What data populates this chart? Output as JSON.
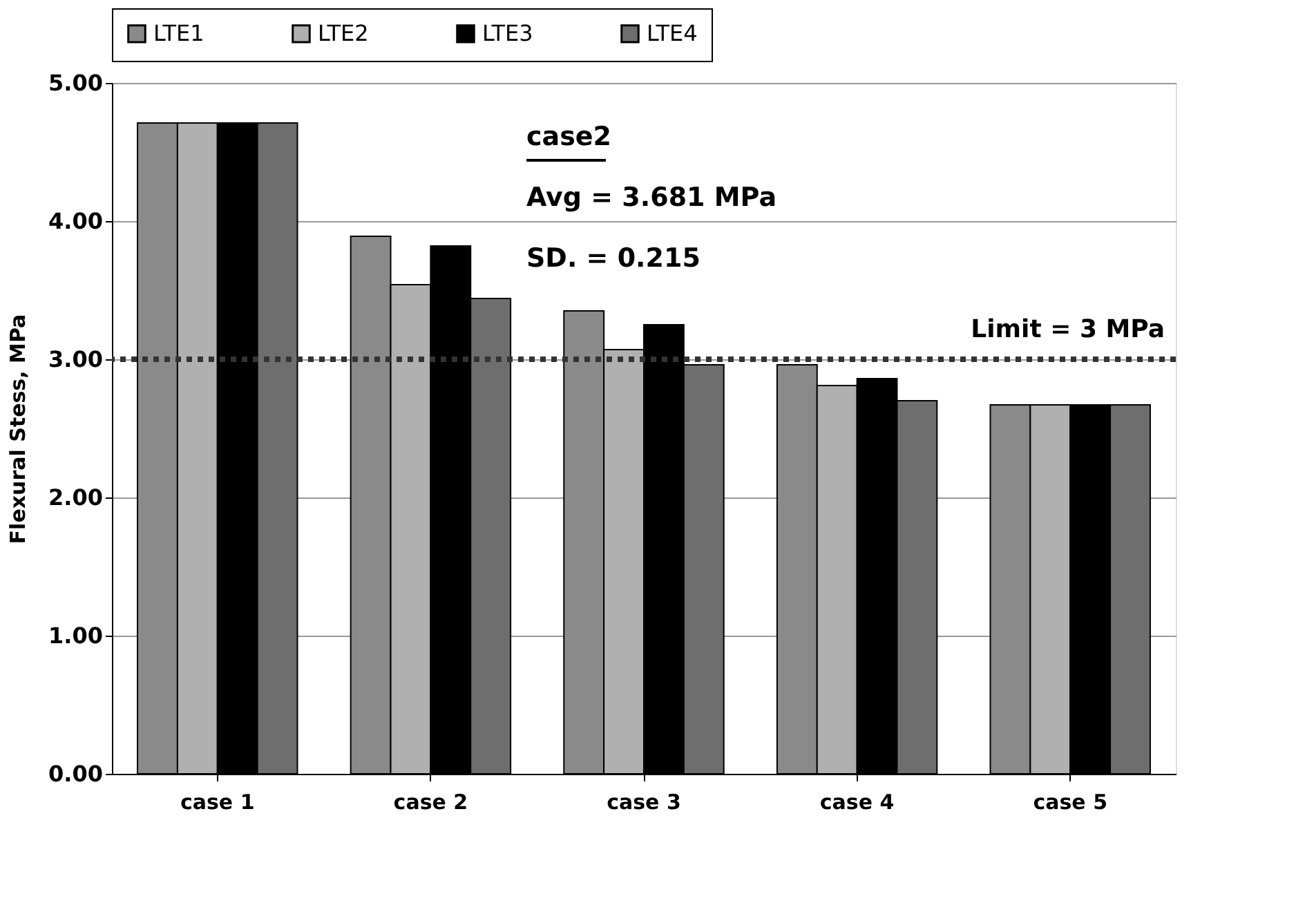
{
  "chart_data": {
    "type": "bar",
    "ylabel": "Flexural Stess, MPa",
    "categories": [
      "case 1",
      "case 2",
      "case 3",
      "case 4",
      "case 5"
    ],
    "series": [
      {
        "name": "LTE1",
        "color": "#8a8a8a",
        "values": [
          4.71,
          3.89,
          3.35,
          2.96,
          2.67
        ]
      },
      {
        "name": "LTE2",
        "color": "#b0b0b0",
        "values": [
          4.71,
          3.54,
          3.07,
          2.81,
          2.67
        ]
      },
      {
        "name": "LTE3",
        "color": "#000000",
        "values": [
          4.71,
          3.82,
          3.25,
          2.86,
          2.67
        ]
      },
      {
        "name": "LTE4",
        "color": "#6e6e6e",
        "values": [
          4.71,
          3.44,
          2.96,
          2.7,
          2.67
        ]
      }
    ],
    "ylim": [
      0,
      5
    ],
    "yticks": [
      {
        "value": 0,
        "label": "0.00"
      },
      {
        "value": 1,
        "label": "1.00"
      },
      {
        "value": 2,
        "label": "2.00"
      },
      {
        "value": 3,
        "label": "3.00"
      },
      {
        "value": 4,
        "label": "4.00"
      },
      {
        "value": 5,
        "label": "5.00"
      }
    ],
    "grid": "y",
    "legend": "top",
    "ref_lines": [
      {
        "axis": "y",
        "value": 3,
        "label": "Limit = 3 MPa",
        "color": "#333333",
        "line_style": "dotted"
      }
    ],
    "annotations": [
      "case2",
      "Avg = 3.681 MPa",
      "SD. = 0.215"
    ]
  }
}
